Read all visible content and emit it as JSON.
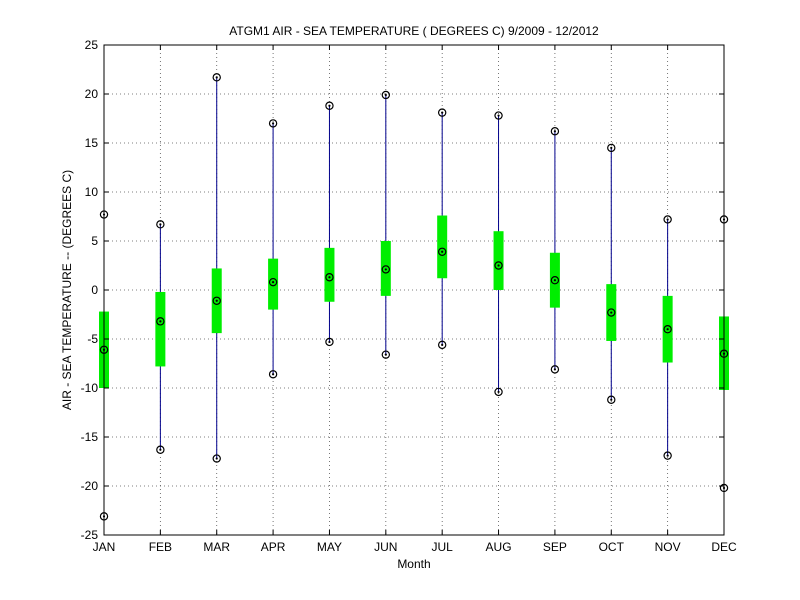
{
  "chart_data": {
    "type": "box",
    "title": "ATGM1  AIR - SEA TEMPERATURE ( DEGREES C) 9/2009 - 12/2012",
    "xlabel": "Month",
    "ylabel": "AIR - SEA TEMPERATURE -- (DEGREES C)",
    "categories": [
      "JAN",
      "FEB",
      "MAR",
      "APR",
      "MAY",
      "JUN",
      "JUL",
      "AUG",
      "SEP",
      "OCT",
      "NOV",
      "DEC"
    ],
    "ylim": [
      -25,
      25
    ],
    "yticks": [
      -25,
      -20,
      -15,
      -10,
      -5,
      0,
      5,
      10,
      15,
      20,
      25
    ],
    "grid": true,
    "colors": {
      "whisker": "#00008b",
      "box": "#00ee00",
      "marker": "#000000",
      "grid": "#555555"
    },
    "series": [
      {
        "min": [
          -23.1,
          -16.3,
          -17.2,
          -8.6,
          -5.3,
          -6.6,
          -5.6,
          -10.4,
          -8.1,
          -11.2,
          -16.9,
          -20.2
        ],
        "q1": [
          -10.0,
          -7.8,
          -4.4,
          -2.0,
          -1.2,
          -0.6,
          1.2,
          0.0,
          -1.8,
          -5.2,
          -7.4,
          -10.2
        ],
        "median": [
          -6.1,
          -3.2,
          -1.1,
          0.8,
          1.3,
          2.1,
          3.9,
          2.5,
          1.0,
          -2.3,
          -4.0,
          -6.5
        ],
        "q3": [
          -2.2,
          -0.2,
          2.2,
          3.2,
          4.3,
          5.0,
          7.6,
          6.0,
          3.8,
          0.6,
          -0.6,
          -2.7
        ],
        "max": [
          7.7,
          6.7,
          21.7,
          17.0,
          18.8,
          19.9,
          18.1,
          17.8,
          16.2,
          14.5,
          7.2,
          7.2
        ]
      }
    ]
  }
}
